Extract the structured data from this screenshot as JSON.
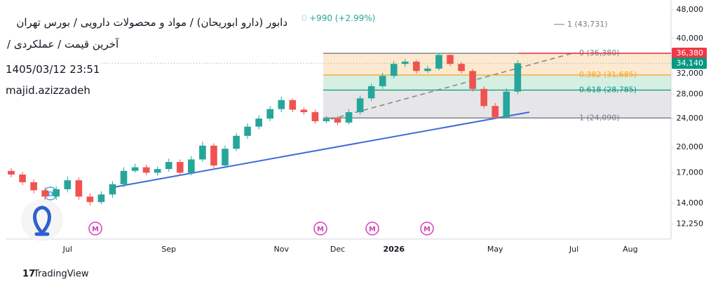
{
  "chart_data": {
    "type": "candlestick",
    "title": "دابور (دارو ابوریحان) / مواد و محصولات دارویی / بورس تهران",
    "price_fragment": "0",
    "change": "+990 (+2.99%)",
    "subtitle": "آخرین قیمت / عملکردی /",
    "timestamp": "1405/03/12 23:51",
    "author": "majid.azizzadeh",
    "footer": "TradingView",
    "log_scale": true,
    "grid": false,
    "up_color": "#26a69a",
    "down_color": "#ef5350",
    "categories": [
      null,
      null,
      null,
      null,
      null,
      "Jul",
      null,
      null,
      null,
      null,
      null,
      null,
      null,
      null,
      "Sep",
      null,
      null,
      null,
      null,
      null,
      null,
      null,
      null,
      null,
      "Nov",
      null,
      null,
      null,
      null,
      "Dec",
      null,
      null,
      null,
      null,
      "2026",
      null,
      null,
      null,
      null,
      null,
      null,
      null,
      null,
      "May",
      null,
      null,
      null,
      null,
      null,
      null,
      "Jul",
      null,
      null,
      null,
      null,
      "Aug",
      null,
      null,
      null
    ],
    "open": [
      17200,
      16800,
      16000,
      15200,
      14600,
      15300,
      16200,
      14600,
      14100,
      14800,
      15800,
      17200,
      17600,
      17000,
      17400,
      18200,
      17000,
      18500,
      20200,
      17800,
      19800,
      21500,
      22800,
      24000,
      25500,
      27000,
      25400,
      25000,
      23600,
      24000,
      23400,
      25000,
      27300,
      29500,
      31500,
      34000,
      34500,
      32500,
      33000,
      36000,
      34000,
      32500,
      29000,
      26000,
      24200,
      28500,
      null,
      null,
      null,
      null,
      null,
      null,
      null,
      null,
      null,
      null,
      null,
      null,
      null
    ],
    "high": [
      17500,
      17100,
      16300,
      15500,
      15600,
      16600,
      16500,
      14900,
      15100,
      16100,
      17600,
      18000,
      17900,
      17700,
      18600,
      18500,
      18900,
      20700,
      20500,
      20200,
      21900,
      23300,
      24500,
      26000,
      27600,
      27300,
      25800,
      25400,
      24400,
      24400,
      25500,
      27800,
      30000,
      32100,
      34600,
      35100,
      34900,
      33600,
      36380,
      36100,
      34400,
      32900,
      29500,
      26500,
      29100,
      34800,
      null,
      null,
      null,
      null,
      null,
      null,
      null,
      null,
      null,
      null,
      null,
      null,
      null
    ],
    "low": [
      16500,
      15700,
      14900,
      14300,
      14300,
      15000,
      14300,
      13800,
      13900,
      14500,
      15500,
      17000,
      16700,
      16700,
      17100,
      16700,
      16700,
      18200,
      17500,
      17500,
      19500,
      21100,
      22400,
      23600,
      25000,
      25000,
      24600,
      23200,
      23300,
      23000,
      23100,
      24600,
      26800,
      29000,
      31000,
      33300,
      32000,
      32100,
      32600,
      33500,
      32000,
      28500,
      25600,
      24090,
      24100,
      28000,
      null,
      null,
      null,
      null,
      null,
      null,
      null,
      null,
      null,
      null,
      null,
      null,
      null
    ],
    "close": [
      16800,
      16000,
      15200,
      14600,
      15300,
      16200,
      14600,
      14100,
      14800,
      15800,
      17200,
      17600,
      17000,
      17400,
      18200,
      17000,
      18500,
      20200,
      17800,
      19800,
      21500,
      22800,
      24000,
      25500,
      27000,
      25400,
      25000,
      23600,
      24000,
      23400,
      25000,
      27300,
      29500,
      31500,
      34000,
      34500,
      32500,
      33000,
      36000,
      34000,
      32500,
      29000,
      26000,
      24200,
      28500,
      34140,
      null,
      null,
      null,
      null,
      null,
      null,
      null,
      null,
      null,
      null,
      null,
      null,
      null
    ],
    "ylim": [
      11140,
      49300
    ],
    "yticks": [
      {
        "value": 12250,
        "label": "12,250"
      },
      {
        "value": 14000,
        "label": "14,000"
      },
      {
        "value": 17000,
        "label": "17,000"
      },
      {
        "value": 20000,
        "label": "20,000"
      },
      {
        "value": 24000,
        "label": "24,000"
      },
      {
        "value": 28000,
        "label": "28,000"
      },
      {
        "value": 32000,
        "label": "32,000"
      },
      {
        "value": 40000,
        "label": "40,000"
      },
      {
        "value": 48000,
        "label": "48,000"
      }
    ],
    "price_labels": [
      {
        "value": 36380,
        "label": "36,380",
        "color": "#f23645"
      },
      {
        "value": 34140,
        "label": "34,140",
        "color": "#089981"
      }
    ],
    "fib_levels": [
      {
        "price": 36380,
        "label": "0 (36,380)",
        "color": "#787b86",
        "fill": "#fde9cf"
      },
      {
        "price": 31685,
        "label": "0.382 (31,685)",
        "color": "#f7a21b",
        "fill": "#d6efe3"
      },
      {
        "price": 28785,
        "label": "0.618 (28,785)",
        "color": "#089981",
        "fill": "#e6e6e8"
      },
      {
        "price": 24090,
        "label": "1 (24,090)",
        "color": "#787b86"
      },
      {
        "price": 43731,
        "label": "1 (43,731)",
        "color": "#787b86"
      }
    ]
  }
}
